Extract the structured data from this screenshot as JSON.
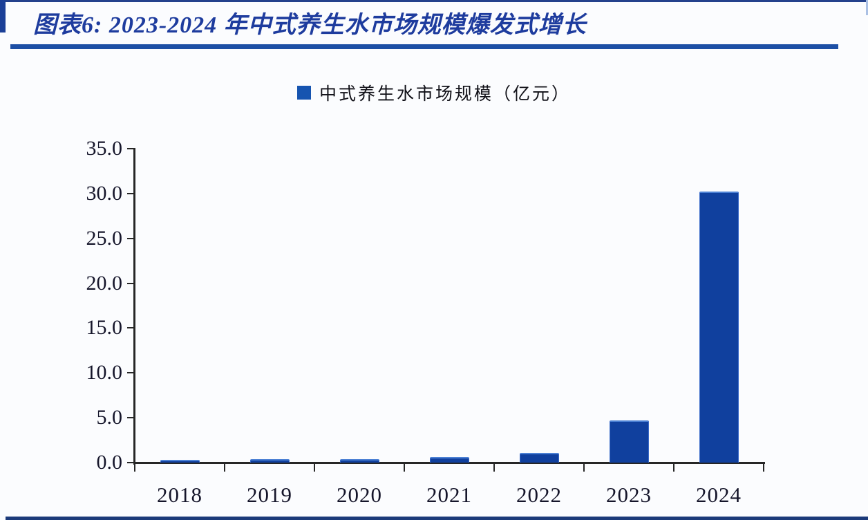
{
  "header": {
    "title": "图表6: 2023-2024 年中式养生水市场规模爆发式增长"
  },
  "legend": {
    "label": "中式养生水市场规模（亿元）"
  },
  "colors": {
    "bar_fill": "#10409e",
    "bar_edge_highlight": "#4b80d4",
    "legend_swatch": "#1654b0",
    "title_text": "#1e3c9e",
    "divider_rule": "#1c4fa5",
    "axis_line": "#262626",
    "frame_accent": "#1b3f97",
    "background": "#fbfcfe"
  },
  "chart_data": {
    "type": "bar",
    "title": "图表6: 2023-2024 年中式养生水市场规模爆发式增长",
    "categories": [
      "2018",
      "2019",
      "2020",
      "2021",
      "2022",
      "2023",
      "2024"
    ],
    "values": [
      0.3,
      0.4,
      0.4,
      0.6,
      1.1,
      4.7,
      30.2
    ],
    "series_name": "中式养生水市场规模（亿元）",
    "xlabel": "",
    "ylabel": "",
    "ylim": [
      0,
      35
    ],
    "ytick_step": 5,
    "ytick_labels": [
      "0.0",
      "5.0",
      "10.0",
      "15.0",
      "20.0",
      "25.0",
      "30.0",
      "35.0"
    ],
    "grid": false,
    "legend_position": "top-center",
    "unit": "亿元"
  }
}
